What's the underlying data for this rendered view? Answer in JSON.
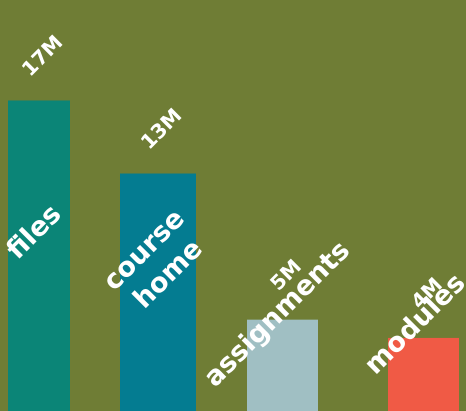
{
  "chart_data": {
    "type": "bar",
    "categories": [
      "files",
      "course home",
      "assignments",
      "modules"
    ],
    "values": [
      17,
      13,
      5,
      4
    ],
    "value_labels": [
      "17M",
      "13M",
      "5M",
      "4M"
    ],
    "unit": "M",
    "colors": [
      "#0b8577",
      "#047c91",
      "#a0bfc3",
      "#f05a45"
    ],
    "background": "#6f7d35",
    "ylim": [
      0,
      22.5
    ],
    "grid": false,
    "legend": "none"
  }
}
